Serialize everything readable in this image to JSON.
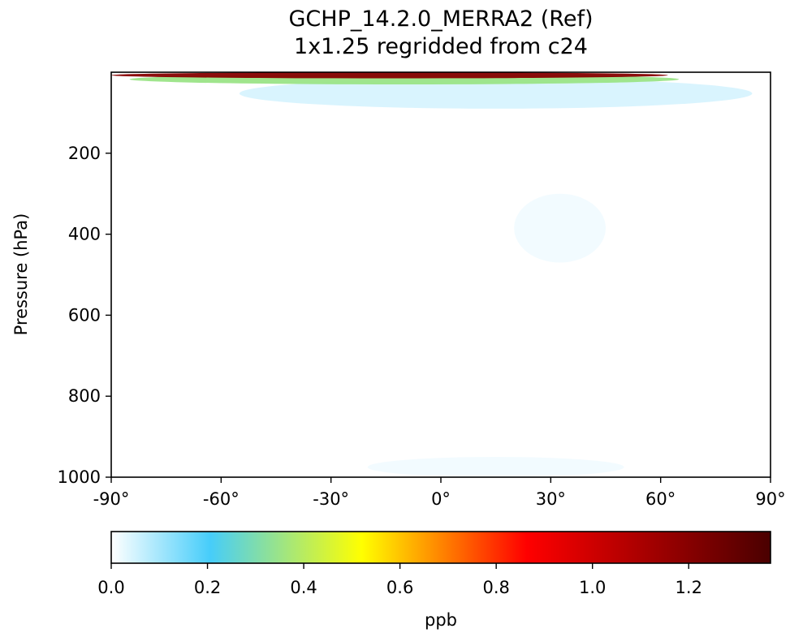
{
  "chart_data": {
    "type": "heatmap",
    "title": "GCHP_14.2.0_MERRA2 (Ref)",
    "subtitle": "1x1.25 regridded from c24",
    "xlabel": "",
    "ylabel": "Pressure (hPa)",
    "xlim": [
      -90,
      90
    ],
    "ylim": [
      1000,
      0
    ],
    "x_ticks": [
      -90,
      -60,
      -30,
      0,
      30,
      60,
      90
    ],
    "x_tick_labels": [
      "-90°",
      "-60°",
      "-30°",
      "0°",
      "30°",
      "60°",
      "90°"
    ],
    "y_ticks": [
      200,
      400,
      600,
      800,
      1000
    ],
    "y_tick_labels": [
      "200",
      "400",
      "600",
      "800",
      "1000"
    ],
    "colorbar": {
      "label": "ppb",
      "range": [
        0.0,
        1.37
      ],
      "ticks": [
        0.0,
        0.2,
        0.4,
        0.6,
        0.8,
        1.0,
        1.2
      ],
      "tick_labels": [
        "0.0",
        "0.2",
        "0.4",
        "0.6",
        "0.8",
        "1.0",
        "1.2"
      ],
      "colors": [
        "#ffffff",
        "#46cdfa",
        "#ffff00",
        "#ff0000",
        "#4a0000"
      ]
    },
    "features": [
      {
        "description": "max",
        "lat_range": [
          -90,
          62
        ],
        "pressure_range": [
          0,
          15
        ],
        "value": 1.2
      },
      {
        "description": "halo",
        "lat_range": [
          -85,
          65
        ],
        "pressure_range": [
          5,
          30
        ],
        "value": 0.35
      },
      {
        "description": "weak",
        "lat_range": [
          -55,
          85
        ],
        "pressure_range": [
          15,
          90
        ],
        "value": 0.06
      },
      {
        "description": "weak",
        "lat_range": [
          20,
          45
        ],
        "pressure_range": [
          300,
          470
        ],
        "value": 0.02
      },
      {
        "description": "weak",
        "lat_range": [
          -20,
          50
        ],
        "pressure_range": [
          950,
          1000
        ],
        "value": 0.02
      }
    ]
  }
}
